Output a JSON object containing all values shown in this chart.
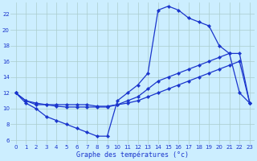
{
  "xlabel": "Graphe des températures (°c)",
  "bg_color": "#cceeff",
  "line_color": "#1a35cc",
  "grid_color": "#aacccc",
  "xlim": [
    -0.5,
    23.5
  ],
  "ylim": [
    5.5,
    23.5
  ],
  "xticks": [
    0,
    1,
    2,
    3,
    4,
    5,
    6,
    7,
    8,
    9,
    10,
    11,
    12,
    13,
    14,
    15,
    16,
    17,
    18,
    19,
    20,
    21,
    22,
    23
  ],
  "yticks": [
    6,
    8,
    10,
    12,
    14,
    16,
    18,
    20,
    22
  ],
  "line1_x": [
    0,
    1,
    2,
    3,
    4,
    5,
    6,
    7,
    8,
    9,
    10,
    11,
    12,
    13,
    14,
    15,
    16,
    17,
    18,
    19,
    20,
    21,
    22,
    23
  ],
  "line1_y": [
    12,
    10.7,
    10,
    9,
    8.5,
    8,
    7.5,
    7,
    6.5,
    6.5,
    11,
    12,
    13,
    14.5,
    22.5,
    23,
    22.5,
    21.5,
    21,
    20.5,
    18,
    17,
    12,
    10.7
  ],
  "line2_x": [
    0,
    1,
    2,
    3,
    4,
    5,
    6,
    7,
    8,
    9,
    10,
    11,
    12,
    13,
    14,
    15,
    16,
    17,
    18,
    19,
    20,
    21,
    22,
    23
  ],
  "line2_y": [
    12,
    11,
    10.5,
    10.5,
    10.5,
    10.5,
    10.5,
    10.5,
    10.3,
    10.3,
    10.5,
    10.7,
    11,
    11.5,
    12,
    12.5,
    13,
    13.5,
    14,
    14.5,
    15,
    15.5,
    16,
    10.7
  ],
  "line3_x": [
    0,
    1,
    2,
    3,
    4,
    5,
    6,
    7,
    8,
    9,
    10,
    11,
    12,
    13,
    14,
    15,
    16,
    17,
    18,
    19,
    20,
    21,
    22,
    23
  ],
  "line3_y": [
    12,
    11,
    10.7,
    10.5,
    10.3,
    10.2,
    10.2,
    10.2,
    10.2,
    10.2,
    10.5,
    11,
    11.5,
    12.5,
    13.5,
    14,
    14.5,
    15,
    15.5,
    16,
    16.5,
    17,
    17,
    10.7
  ]
}
